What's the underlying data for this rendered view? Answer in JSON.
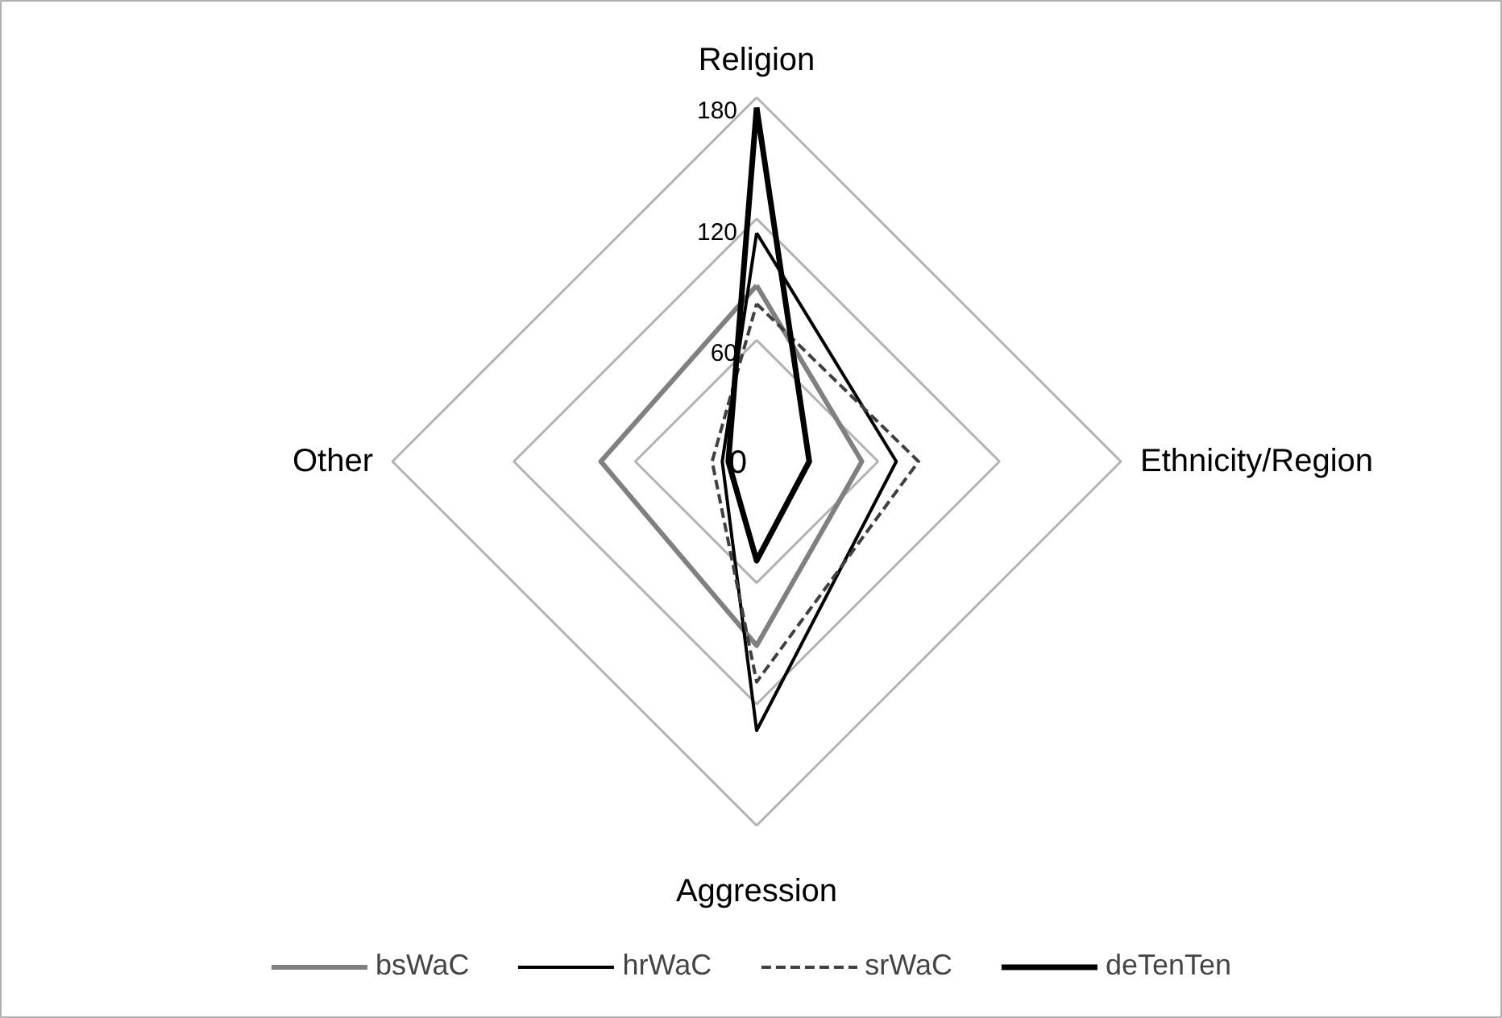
{
  "chart_data": {
    "type": "radar",
    "categories": [
      "Religion",
      "Ethnicity/Region",
      "Aggression",
      "Other"
    ],
    "ylim": [
      0,
      180
    ],
    "yticks": [
      0,
      60,
      120,
      180
    ],
    "grid": true,
    "legend": "bottom",
    "series": [
      {
        "name": "bsWaC",
        "color": "#808080",
        "line_style": "solid",
        "values": [
          87,
          52,
          91,
          77
        ]
      },
      {
        "name": "hrWaC",
        "color": "#000000",
        "line_style": "solid",
        "values": [
          113,
          69,
          133,
          17
        ]
      },
      {
        "name": "srWaC",
        "color": "#404040",
        "line_style": "dashed",
        "values": [
          78,
          80,
          109,
          22
        ]
      },
      {
        "name": "deTenTen",
        "color": "#000000",
        "line_style": "solid",
        "values": [
          175,
          26,
          49,
          14
        ]
      }
    ]
  }
}
